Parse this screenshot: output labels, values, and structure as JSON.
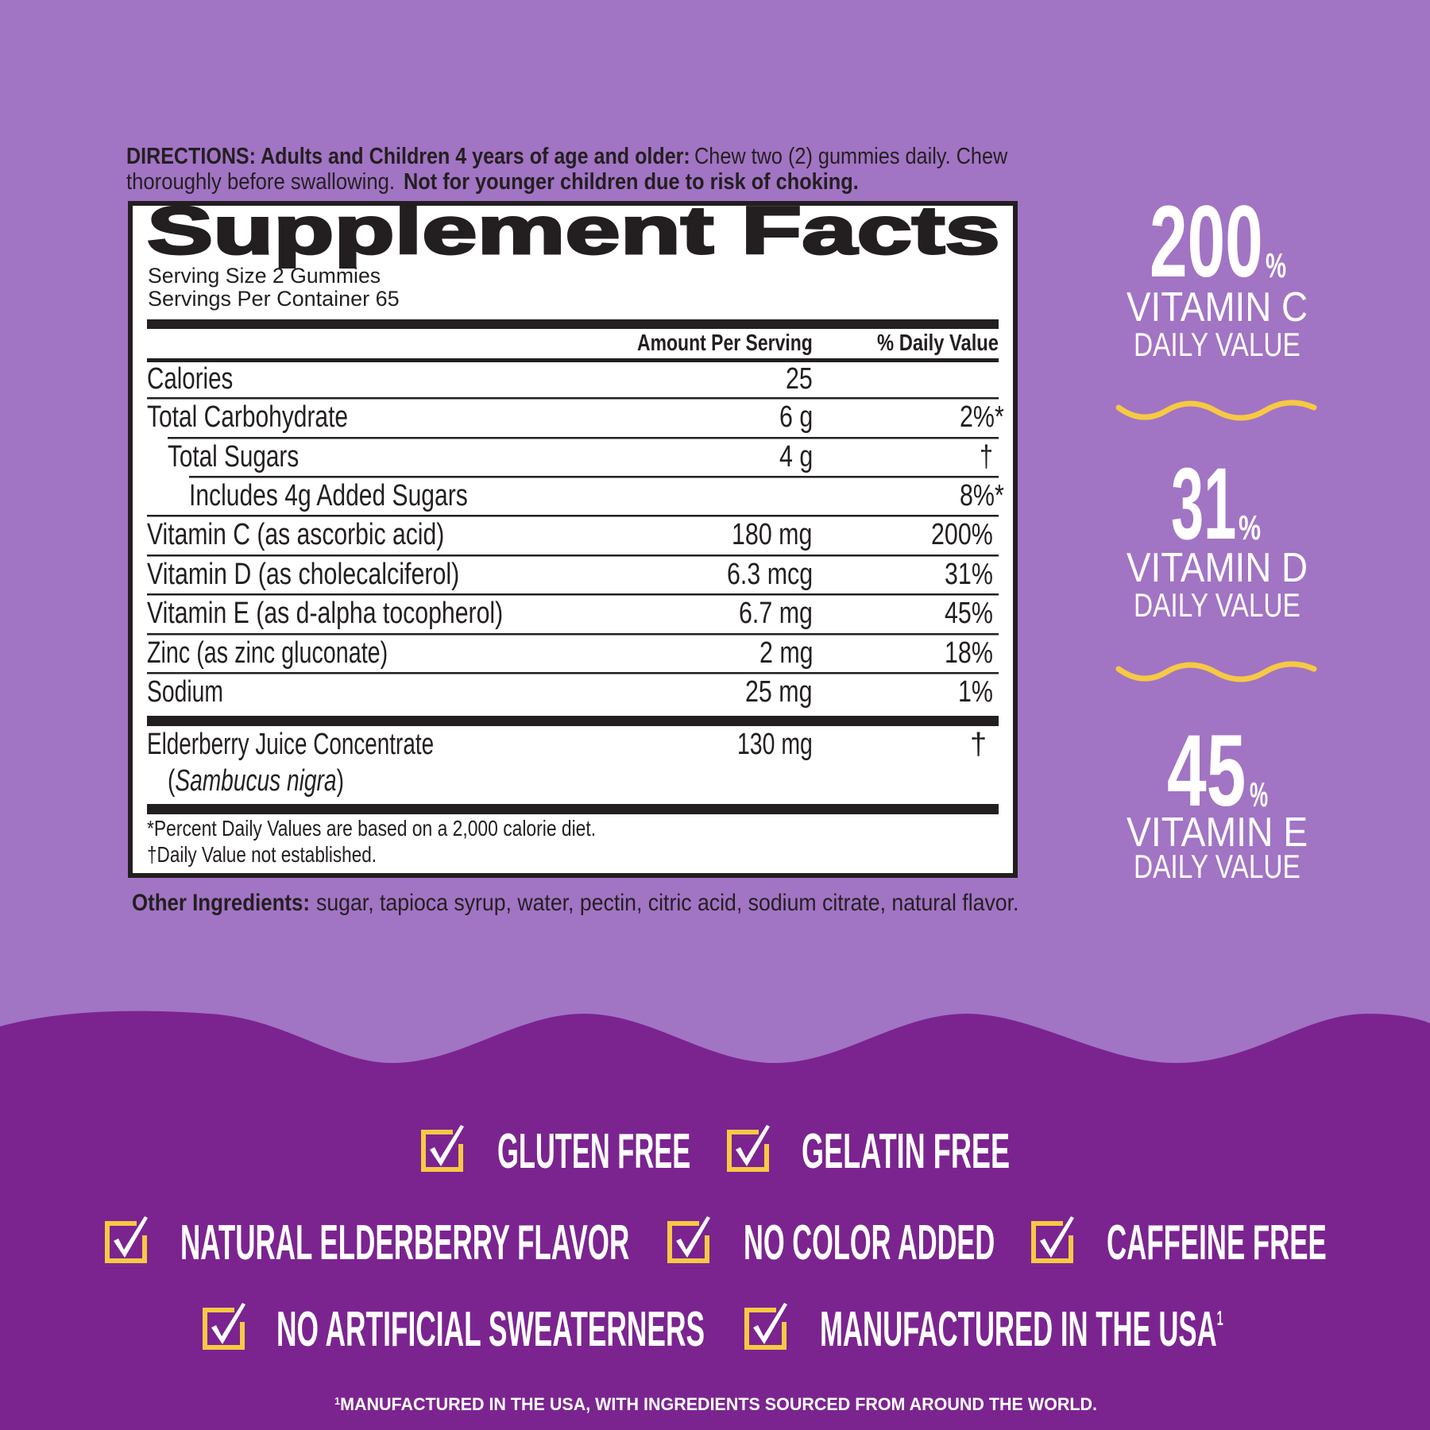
{
  "colors": {
    "background": "#a274c4",
    "band": "#7b2490",
    "accent_yellow": "#f6c944",
    "ink": "#231f20",
    "label_bg": "#ffffff"
  },
  "directions": {
    "lead": "DIRECTIONS: Adults and Children 4 years of age and older:",
    "line1_rest": "Chew two (2) gummies daily. Chew",
    "line2_start": "thoroughly before swallowing.",
    "warning": "Not for younger children due to risk of choking."
  },
  "facts": {
    "title": "Supplement Facts",
    "serving_size": "Serving Size 2 Gummies",
    "servings_per_container": "Servings Per Container 65",
    "col_amount": "Amount Per Serving",
    "col_dv": "% Daily Value",
    "rows": [
      {
        "name": "Calories",
        "amount": "25",
        "dv": ""
      },
      {
        "name": "Total Carbohydrate",
        "amount": "6 g",
        "dv": "2%*"
      },
      {
        "name": "Total Sugars",
        "amount": "4 g",
        "dv": "†"
      },
      {
        "name": "Includes 4g Added Sugars",
        "amount": "",
        "dv": "8%*"
      },
      {
        "name": "Vitamin C (as ascorbic acid)",
        "amount": "180 mg",
        "dv": "200%"
      },
      {
        "name": "Vitamin D (as cholecalciferol)",
        "amount": "6.3 mcg",
        "dv": "31%"
      },
      {
        "name": "Vitamin E (as d-alpha tocopherol)",
        "amount": "6.7 mg",
        "dv": "45%"
      },
      {
        "name": "Zinc (as zinc gluconate)",
        "amount": "2 mg",
        "dv": "18%"
      },
      {
        "name": "Sodium",
        "amount": "25 mg",
        "dv": "1%"
      }
    ],
    "elderberry": {
      "name": "Elderberry Juice Concentrate",
      "open": "(",
      "latin": "Sambucus nigra",
      "close": ")",
      "amount": "130 mg",
      "dv": "†"
    },
    "footnote1": "*Percent Daily Values are based on a 2,000 calorie diet.",
    "footnote2": "†Daily Value not established."
  },
  "other_ingredients": {
    "label": "Other Ingredients:",
    "text": "sugar, tapioca syrup, water, pectin, citric acid, sodium citrate, natural flavor."
  },
  "highlights": [
    {
      "value": "200",
      "unit": "%",
      "nutrient": "VITAMIN C",
      "caption": "DAILY VALUE"
    },
    {
      "value": "31",
      "unit": "%",
      "nutrient": "VITAMIN D",
      "caption": "DAILY VALUE"
    },
    {
      "value": "45",
      "unit": "%",
      "nutrient": "VITAMIN E",
      "caption": "DAILY VALUE"
    }
  ],
  "claims": [
    "GLUTEN FREE",
    "GELATIN  FREE",
    "NATURAL ELDERBERRY FLAVOR",
    "NO COLOR ADDED",
    "CAFFEINE FREE",
    "NO ARTIFICIAL SWEATERNERS",
    "MANUFACTURED IN THE USA"
  ],
  "claim_superscript": "1",
  "footnote": {
    "mark": "1",
    "text": "MANUFACTURED IN THE USA, WITH INGREDIENTS SOURCED FROM AROUND THE WORLD."
  },
  "icons": {
    "claim_icon": "checkbox-checked-icon",
    "divider": "wavy-line"
  }
}
